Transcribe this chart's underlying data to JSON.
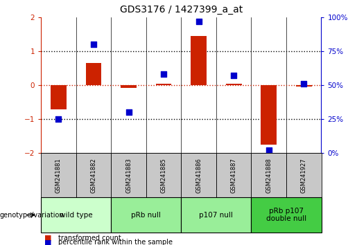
{
  "title": "GDS3176 / 1427399_a_at",
  "samples": [
    "GSM241881",
    "GSM241882",
    "GSM241883",
    "GSM241885",
    "GSM241886",
    "GSM241887",
    "GSM241888",
    "GSM241927"
  ],
  "bar_values": [
    -0.72,
    0.65,
    -0.08,
    0.05,
    1.45,
    0.05,
    -1.75,
    -0.05
  ],
  "dot_percentiles": [
    25,
    80,
    30,
    58,
    97,
    57,
    2,
    51
  ],
  "bar_color": "#cc2200",
  "dot_color": "#0000cc",
  "ylim_left": [
    -2,
    2
  ],
  "ylim_right": [
    0,
    100
  ],
  "right_ticks": [
    0,
    25,
    50,
    75,
    100
  ],
  "right_tick_labels": [
    "0%",
    "25%",
    "50%",
    "75%",
    "100%"
  ],
  "left_ticks": [
    -2,
    -1,
    0,
    1,
    2
  ],
  "groups": [
    {
      "label": "wild type",
      "start": 0,
      "end": 2,
      "color": "#ccffcc"
    },
    {
      "label": "pRb null",
      "start": 2,
      "end": 4,
      "color": "#99ee99"
    },
    {
      "label": "p107 null",
      "start": 4,
      "end": 6,
      "color": "#99ee99"
    },
    {
      "label": "pRb p107\ndouble null",
      "start": 6,
      "end": 8,
      "color": "#44cc44"
    }
  ],
  "legend_items": [
    {
      "label": "transformed count",
      "color": "#cc2200"
    },
    {
      "label": "percentile rank within the sample",
      "color": "#0000cc"
    }
  ],
  "genotype_label": "genotype/variation",
  "bar_width": 0.45,
  "dot_size": 30,
  "sample_box_color": "#c8c8c8",
  "group_border_color": "#000000",
  "title_fontsize": 10,
  "tick_fontsize": 7.5,
  "sample_fontsize": 6,
  "group_fontsize": 7.5,
  "legend_fontsize": 7
}
